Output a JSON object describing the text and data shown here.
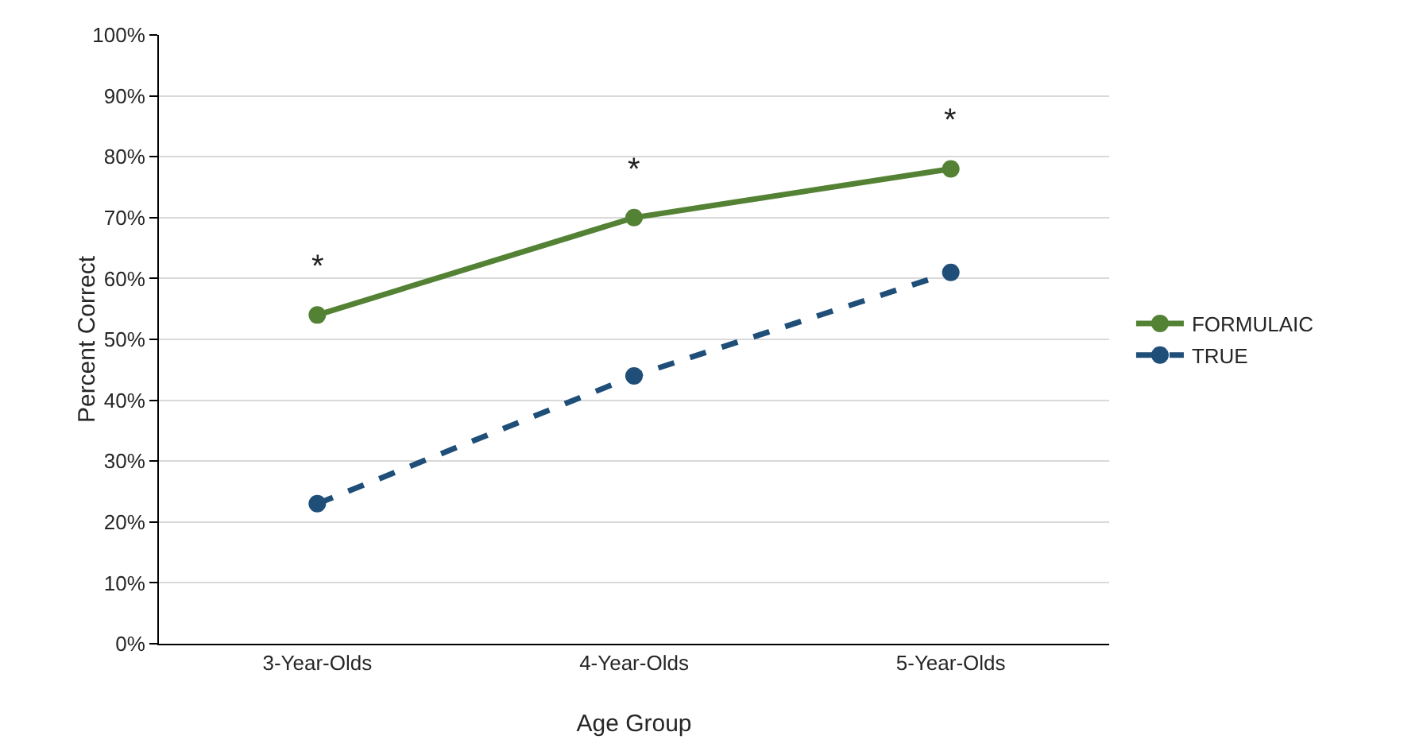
{
  "chart_data": {
    "type": "line",
    "xlabel": "Age Group",
    "ylabel": "Percent Correct",
    "categories": [
      "3-Year-Olds",
      "4-Year-Olds",
      "5-Year-Olds"
    ],
    "series": [
      {
        "name": "FORMULAIC",
        "color": "#548235",
        "values": [
          54,
          70,
          78
        ],
        "line_style": "solid"
      },
      {
        "name": "TRUE",
        "color": "#1f4e79",
        "values": [
          23,
          44,
          61
        ],
        "line_style": "dashed"
      }
    ],
    "ylim": [
      0,
      100
    ],
    "yticks": [
      {
        "value": 0,
        "label": "0%"
      },
      {
        "value": 10,
        "label": "10%"
      },
      {
        "value": 20,
        "label": "20%"
      },
      {
        "value": 30,
        "label": "30%"
      },
      {
        "value": 40,
        "label": "40%"
      },
      {
        "value": 50,
        "label": "50%"
      },
      {
        "value": 60,
        "label": "60%"
      },
      {
        "value": 70,
        "label": "70%"
      },
      {
        "value": 80,
        "label": "80%"
      },
      {
        "value": 90,
        "label": "90%"
      },
      {
        "value": 100,
        "label": "100%"
      }
    ],
    "annotations": [
      "*",
      "*",
      "*"
    ],
    "grid": "y",
    "legend": "right",
    "marker": "circle"
  }
}
